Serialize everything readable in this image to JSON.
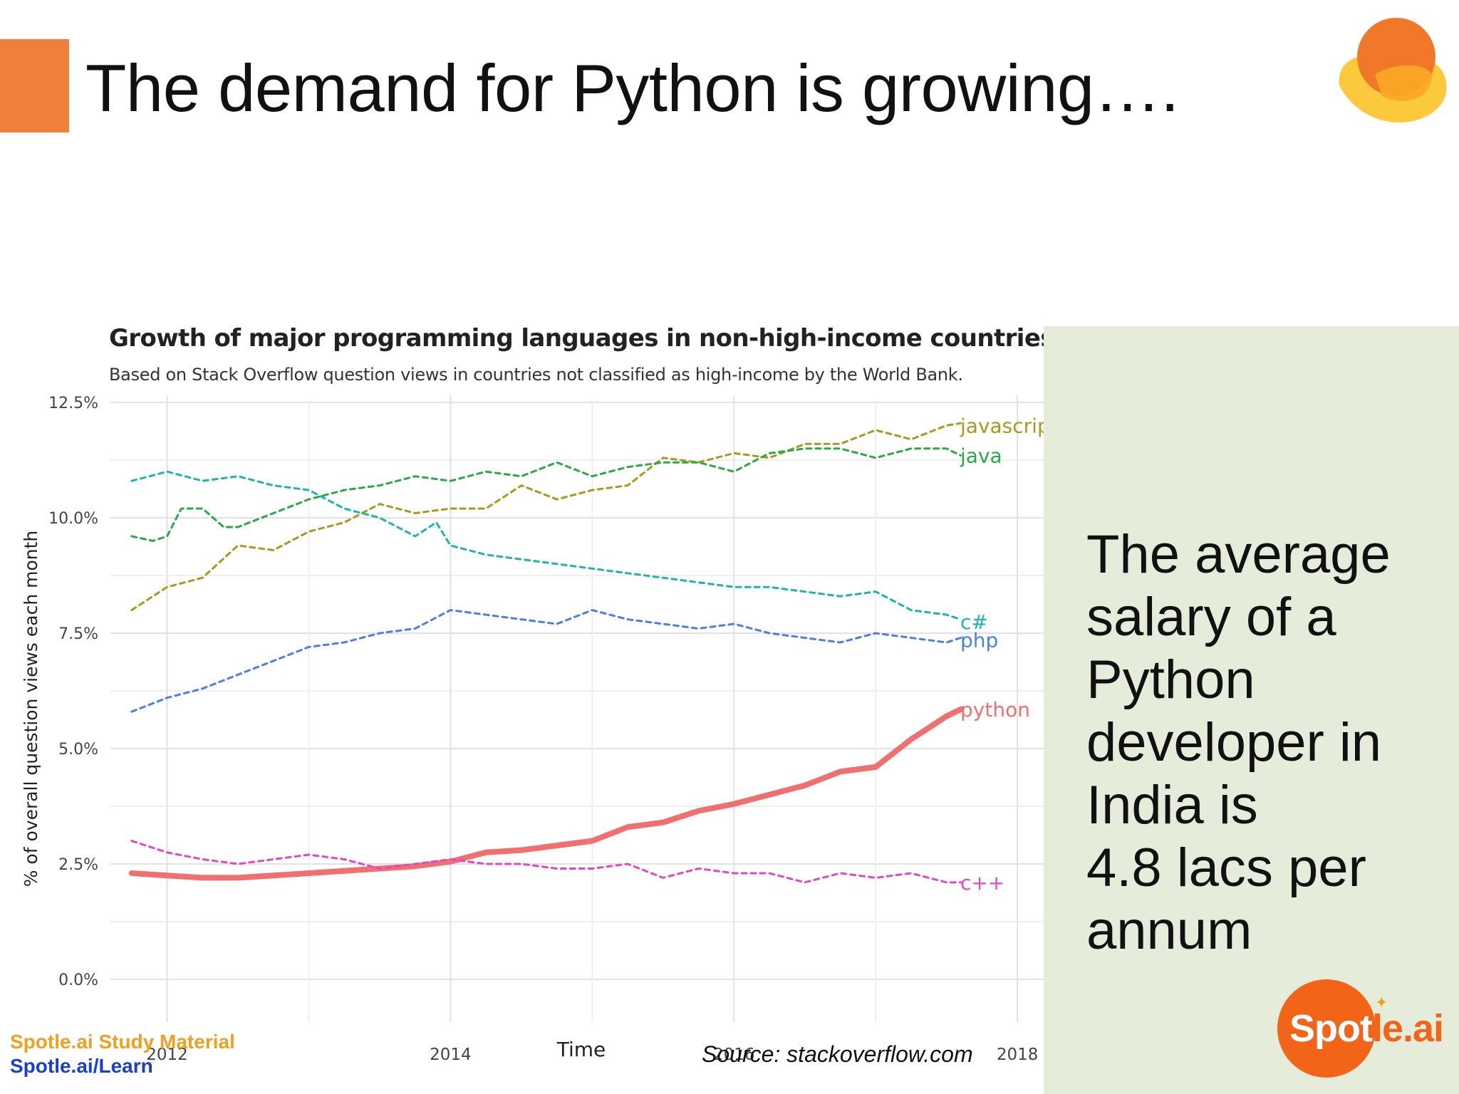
{
  "slide": {
    "title": "The demand for Python is growing….",
    "side_text_lines": [
      "The average",
      "salary of a",
      "Python",
      "developer in",
      "India is",
      "4.8 lacs per",
      "annum"
    ],
    "footer_line1": "Spotle.ai Study Material",
    "footer_line2": "Spotle.ai/Learn",
    "source": "Source: stackoverflow.com",
    "badge_main": "Spot",
    "badge_tail": "le.ai",
    "colors": {
      "accent": "#f07f3c",
      "panel": "#e5ecda",
      "badge": "#f26418",
      "study": "#f0a020",
      "link": "#1a3fd0"
    }
  },
  "chart_data": {
    "type": "line",
    "title": "Growth of major programming languages in non-high-income countries",
    "subtitle": "Based on Stack Overflow question views in countries not classified as high-income by the World Bank.",
    "xlabel": "Time",
    "ylabel": "% of overall question views each month",
    "xlim": [
      2011.6,
      2018.1
    ],
    "ylim": [
      0,
      12.5
    ],
    "x_ticks": [
      "2012",
      "2014",
      "2016",
      "2018"
    ],
    "y_ticks": [
      "0.0%",
      "2.5%",
      "5.0%",
      "7.5%",
      "10.0%",
      "12.5%"
    ],
    "series": [
      {
        "name": "javascript",
        "color": "#a89a1a",
        "dashed": true,
        "label_y": 12.0,
        "x": [
          2011.75,
          2012.0,
          2012.25,
          2012.5,
          2012.75,
          2013.0,
          2013.25,
          2013.5,
          2013.75,
          2014.0,
          2014.25,
          2014.5,
          2014.75,
          2015.0,
          2015.25,
          2015.5,
          2015.75,
          2016.0,
          2016.25,
          2016.5,
          2016.75,
          2017.0,
          2017.25,
          2017.5,
          2017.6
        ],
        "y": [
          8.0,
          8.5,
          8.7,
          9.4,
          9.3,
          9.7,
          9.9,
          10.3,
          10.1,
          10.2,
          10.2,
          10.7,
          10.4,
          10.6,
          10.7,
          11.3,
          11.2,
          11.4,
          11.3,
          11.6,
          11.6,
          11.9,
          11.7,
          12.0,
          12.05
        ]
      },
      {
        "name": "java",
        "color": "#2aa84a",
        "dashed": true,
        "label_y": 11.35,
        "x": [
          2011.75,
          2011.9,
          2012.0,
          2012.1,
          2012.25,
          2012.4,
          2012.5,
          2012.75,
          2013.0,
          2013.25,
          2013.5,
          2013.75,
          2014.0,
          2014.25,
          2014.5,
          2014.75,
          2015.0,
          2015.25,
          2015.5,
          2015.75,
          2016.0,
          2016.25,
          2016.5,
          2016.75,
          2017.0,
          2017.25,
          2017.5,
          2017.6
        ],
        "y": [
          9.6,
          9.5,
          9.6,
          10.2,
          10.2,
          9.8,
          9.8,
          10.1,
          10.4,
          10.6,
          10.7,
          10.9,
          10.8,
          11.0,
          10.9,
          11.2,
          10.9,
          11.1,
          11.2,
          11.2,
          11.0,
          11.4,
          11.5,
          11.5,
          11.3,
          11.5,
          11.5,
          11.35
        ]
      },
      {
        "name": "c#",
        "color": "#1fb5a8",
        "dashed": true,
        "label_y": 7.75,
        "x": [
          2011.75,
          2012.0,
          2012.25,
          2012.5,
          2012.75,
          2013.0,
          2013.25,
          2013.5,
          2013.75,
          2013.9,
          2014.0,
          2014.25,
          2014.5,
          2014.75,
          2015.0,
          2015.25,
          2015.5,
          2015.75,
          2016.0,
          2016.25,
          2016.5,
          2016.75,
          2017.0,
          2017.25,
          2017.5,
          2017.6
        ],
        "y": [
          10.8,
          11.0,
          10.8,
          10.9,
          10.7,
          10.6,
          10.2,
          10.0,
          9.6,
          9.9,
          9.4,
          9.2,
          9.1,
          9.0,
          8.9,
          8.8,
          8.7,
          8.6,
          8.5,
          8.5,
          8.4,
          8.3,
          8.4,
          8.0,
          7.9,
          7.8
        ]
      },
      {
        "name": "php",
        "color": "#4c80e0",
        "dashed": true,
        "label_y": 7.35,
        "x": [
          2011.75,
          2012.0,
          2012.25,
          2012.5,
          2012.75,
          2013.0,
          2013.25,
          2013.5,
          2013.75,
          2014.0,
          2014.25,
          2014.5,
          2014.75,
          2015.0,
          2015.25,
          2015.5,
          2015.75,
          2016.0,
          2016.25,
          2016.5,
          2016.75,
          2017.0,
          2017.25,
          2017.5,
          2017.6
        ],
        "y": [
          5.8,
          6.1,
          6.3,
          6.6,
          6.9,
          7.2,
          7.3,
          7.5,
          7.6,
          8.0,
          7.9,
          7.8,
          7.7,
          8.0,
          7.8,
          7.7,
          7.6,
          7.7,
          7.5,
          7.4,
          7.3,
          7.5,
          7.4,
          7.3,
          7.4
        ]
      },
      {
        "name": "python",
        "color": "#f07070",
        "dashed": false,
        "label_y": 5.85,
        "x": [
          2011.75,
          2012.0,
          2012.25,
          2012.5,
          2012.75,
          2013.0,
          2013.25,
          2013.5,
          2013.75,
          2014.0,
          2014.25,
          2014.5,
          2014.75,
          2015.0,
          2015.25,
          2015.5,
          2015.75,
          2016.0,
          2016.25,
          2016.5,
          2016.75,
          2017.0,
          2017.25,
          2017.4,
          2017.5,
          2017.6
        ],
        "y": [
          2.3,
          2.25,
          2.2,
          2.2,
          2.25,
          2.3,
          2.35,
          2.4,
          2.45,
          2.55,
          2.75,
          2.8,
          2.9,
          3.0,
          3.3,
          3.4,
          3.65,
          3.8,
          4.0,
          4.2,
          4.5,
          4.6,
          5.2,
          5.5,
          5.7,
          5.85
        ]
      },
      {
        "name": "c++",
        "color": "#e048c8",
        "dashed": true,
        "label_y": 2.1,
        "x": [
          2011.75,
          2012.0,
          2012.25,
          2012.5,
          2012.75,
          2013.0,
          2013.25,
          2013.5,
          2013.75,
          2014.0,
          2014.25,
          2014.5,
          2014.75,
          2015.0,
          2015.25,
          2015.5,
          2015.75,
          2016.0,
          2016.25,
          2016.5,
          2016.75,
          2017.0,
          2017.25,
          2017.5,
          2017.6
        ],
        "y": [
          3.0,
          2.75,
          2.6,
          2.5,
          2.6,
          2.7,
          2.6,
          2.4,
          2.5,
          2.6,
          2.5,
          2.5,
          2.4,
          2.4,
          2.5,
          2.2,
          2.4,
          2.3,
          2.3,
          2.1,
          2.3,
          2.2,
          2.3,
          2.1,
          2.1
        ]
      }
    ]
  }
}
